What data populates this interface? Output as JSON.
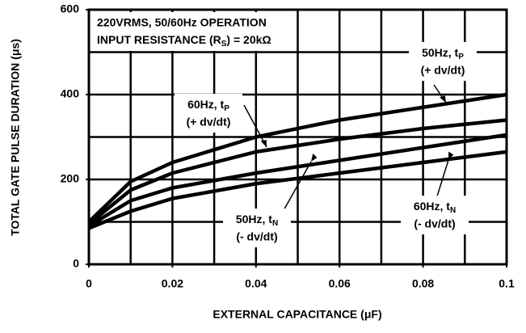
{
  "chart_data": {
    "type": "line",
    "header": [
      "220VRMS, 50/60Hz OPERATION",
      {
        "text": "INPUT RESISTANCE (R",
        "sub": "S",
        "tail": ") = 20kΩ"
      }
    ],
    "xlabel": "EXTERNAL CAPACITANCE (μF)",
    "ylabel": "TOTAL GATE PULSE DURATION (μs)",
    "x": [
      0,
      0.01,
      0.02,
      0.04,
      0.06,
      0.08,
      0.1
    ],
    "series": [
      {
        "name": "50Hz, t",
        "sub": "P",
        "note": "(+ dv/dt)",
        "color": "#000000",
        "values": [
          100,
          195,
          240,
          300,
          340,
          370,
          400
        ]
      },
      {
        "name": "60Hz, t",
        "sub": "P",
        "note": "(+ dv/dt)",
        "color": "#000000",
        "values": [
          95,
          175,
          215,
          265,
          295,
          320,
          340
        ]
      },
      {
        "name": "50Hz, t",
        "sub": "N",
        "note": "(- dv/dt)",
        "color": "#000000",
        "values": [
          90,
          150,
          180,
          215,
          245,
          275,
          305
        ]
      },
      {
        "name": "60Hz, t",
        "sub": "N",
        "note": "(- dv/dt)",
        "color": "#000000",
        "values": [
          85,
          125,
          155,
          190,
          215,
          240,
          265
        ]
      }
    ],
    "xlim": [
      0,
      0.1
    ],
    "xticks": [
      0,
      0.02,
      0.04,
      0.06,
      0.08,
      0.1
    ],
    "xgrid": [
      0.01,
      0.02,
      0.03,
      0.04,
      0.05,
      0.06,
      0.07,
      0.08,
      0.09
    ],
    "ylim": [
      0,
      600
    ],
    "yticks": [
      0,
      200,
      400,
      600
    ],
    "ygrid": [
      100,
      200,
      300,
      400,
      500
    ],
    "grid": true
  }
}
